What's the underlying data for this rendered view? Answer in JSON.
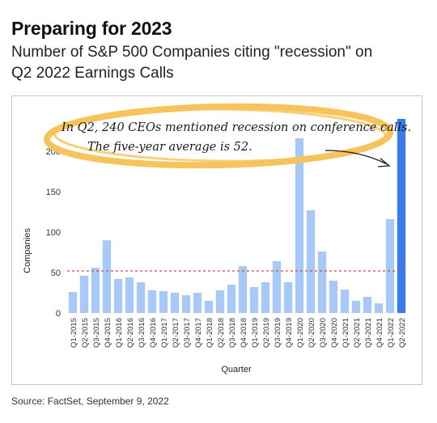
{
  "header": {
    "title": "Preparing for 2023",
    "subtitle_line1": "Number of S&P 500 Companies citing \"recession\" on",
    "subtitle_line2": "Q2 2022 Earnings Calls"
  },
  "source": "Source: FactSet, September 9, 2022",
  "annotation": {
    "line1": "In Q2, 240 CEOs mentioned recession on conference calls.",
    "line2": "The five-year average is 52."
  },
  "colors": {
    "bar": "#a8c8f5",
    "bar_highlight": "#3b7be8",
    "average_line": "#c0504d",
    "annotation_ring": "#f6c35c"
  },
  "chart_data": {
    "type": "bar",
    "xlabel": "Quarter",
    "ylabel": "Companies",
    "ylim": [
      0,
      250
    ],
    "yticks": [
      0,
      50,
      100,
      150,
      200
    ],
    "average": 52,
    "categories": [
      "Q1-2015",
      "Q2-2015",
      "Q3-2015",
      "Q4-2015",
      "Q1-2016",
      "Q2-2016",
      "Q3-2016",
      "Q4-2016",
      "Q1-2017",
      "Q2-2017",
      "Q3-2017",
      "Q4-2017",
      "Q1-2018",
      "Q2-2018",
      "Q3-2018",
      "Q4-2018",
      "Q1-2019",
      "Q2-2019",
      "Q3-2019",
      "Q4-2019",
      "Q1-2020",
      "Q2-2020",
      "Q3-2020",
      "Q4-2020",
      "Q1-2021",
      "Q2-2021",
      "Q3-2021",
      "Q4-2021",
      "Q1-2022",
      "Q2-2022"
    ],
    "values": [
      26,
      46,
      56,
      90,
      42,
      44,
      38,
      28,
      27,
      25,
      22,
      25,
      15,
      28,
      35,
      58,
      32,
      38,
      64,
      38,
      216,
      127,
      76,
      40,
      29,
      15,
      20,
      12,
      116,
      240
    ],
    "highlight_index": 29,
    "grid": false,
    "legend": "none"
  }
}
